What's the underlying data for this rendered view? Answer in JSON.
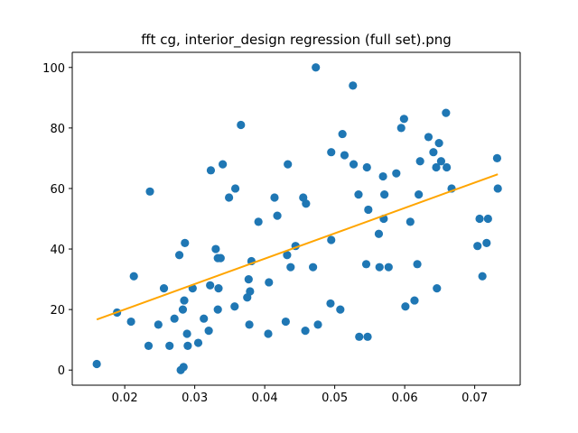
{
  "chart_data": {
    "type": "scatter",
    "title": "fft cg, interior_design regression (full set).png",
    "xlabel": "",
    "ylabel": "",
    "xlim": [
      0.0125,
      0.0765
    ],
    "ylim": [
      -5,
      105
    ],
    "grid": false,
    "xticks": [
      0.02,
      0.03,
      0.04,
      0.05,
      0.06,
      0.07
    ],
    "xtick_labels": [
      "0.02",
      "0.03",
      "0.04",
      "0.05",
      "0.06",
      "0.07"
    ],
    "yticks": [
      0,
      20,
      40,
      60,
      80,
      100
    ],
    "ytick_labels": [
      "0",
      "20",
      "40",
      "60",
      "80",
      "100"
    ],
    "colors": {
      "points": "#1f77b4",
      "line": "#ffa500",
      "axes": "#000000"
    },
    "series": [
      {
        "type": "scatter",
        "points": [
          [
            0.016,
            2
          ],
          [
            0.0189,
            19
          ],
          [
            0.0209,
            16
          ],
          [
            0.0213,
            31
          ],
          [
            0.0234,
            8
          ],
          [
            0.0236,
            59
          ],
          [
            0.0248,
            15
          ],
          [
            0.0256,
            27
          ],
          [
            0.0264,
            8
          ],
          [
            0.0271,
            17
          ],
          [
            0.0278,
            38
          ],
          [
            0.028,
            0
          ],
          [
            0.0283,
            20
          ],
          [
            0.0284,
            1
          ],
          [
            0.0285,
            23
          ],
          [
            0.0286,
            42
          ],
          [
            0.0289,
            12
          ],
          [
            0.029,
            8
          ],
          [
            0.0297,
            27
          ],
          [
            0.0305,
            9
          ],
          [
            0.0313,
            17
          ],
          [
            0.032,
            13
          ],
          [
            0.0322,
            28
          ],
          [
            0.0323,
            66
          ],
          [
            0.033,
            40
          ],
          [
            0.0333,
            20
          ],
          [
            0.0333,
            37
          ],
          [
            0.0334,
            27
          ],
          [
            0.0337,
            37
          ],
          [
            0.034,
            68
          ],
          [
            0.0349,
            57
          ],
          [
            0.0357,
            21
          ],
          [
            0.0358,
            60
          ],
          [
            0.0366,
            81
          ],
          [
            0.0375,
            24
          ],
          [
            0.0377,
            30
          ],
          [
            0.0378,
            15
          ],
          [
            0.0379,
            26
          ],
          [
            0.0381,
            36
          ],
          [
            0.0391,
            49
          ],
          [
            0.0405,
            12
          ],
          [
            0.0406,
            29
          ],
          [
            0.0414,
            57
          ],
          [
            0.0418,
            51
          ],
          [
            0.043,
            16
          ],
          [
            0.0432,
            38
          ],
          [
            0.0433,
            68
          ],
          [
            0.0437,
            34
          ],
          [
            0.0444,
            41
          ],
          [
            0.0455,
            57
          ],
          [
            0.0458,
            13
          ],
          [
            0.0459,
            55
          ],
          [
            0.0469,
            34
          ],
          [
            0.0473,
            100
          ],
          [
            0.0476,
            15
          ],
          [
            0.0494,
            22
          ],
          [
            0.0495,
            43
          ],
          [
            0.0495,
            72
          ],
          [
            0.0508,
            20
          ],
          [
            0.0511,
            78
          ],
          [
            0.0514,
            71
          ],
          [
            0.0526,
            94
          ],
          [
            0.0527,
            68
          ],
          [
            0.0534,
            58
          ],
          [
            0.0535,
            11
          ],
          [
            0.0545,
            35
          ],
          [
            0.0546,
            67
          ],
          [
            0.0547,
            11
          ],
          [
            0.0548,
            53
          ],
          [
            0.0563,
            45
          ],
          [
            0.0564,
            34
          ],
          [
            0.0569,
            64
          ],
          [
            0.057,
            50
          ],
          [
            0.0571,
            58
          ],
          [
            0.0577,
            34
          ],
          [
            0.0588,
            65
          ],
          [
            0.0595,
            80
          ],
          [
            0.0599,
            83
          ],
          [
            0.0601,
            21
          ],
          [
            0.0608,
            49
          ],
          [
            0.0614,
            23
          ],
          [
            0.0618,
            35
          ],
          [
            0.062,
            58
          ],
          [
            0.0622,
            69
          ],
          [
            0.0634,
            77
          ],
          [
            0.0641,
            72
          ],
          [
            0.0645,
            67
          ],
          [
            0.0646,
            27
          ],
          [
            0.0649,
            75
          ],
          [
            0.0652,
            69
          ],
          [
            0.0659,
            85
          ],
          [
            0.066,
            67
          ],
          [
            0.0667,
            60
          ],
          [
            0.0704,
            41
          ],
          [
            0.0707,
            50
          ],
          [
            0.0711,
            31
          ],
          [
            0.0717,
            42
          ],
          [
            0.0719,
            50
          ],
          [
            0.0732,
            70
          ],
          [
            0.0733,
            60
          ]
        ]
      },
      {
        "type": "line",
        "points": [
          [
            0.016,
            16.7
          ],
          [
            0.0733,
            64.7
          ]
        ]
      }
    ]
  }
}
